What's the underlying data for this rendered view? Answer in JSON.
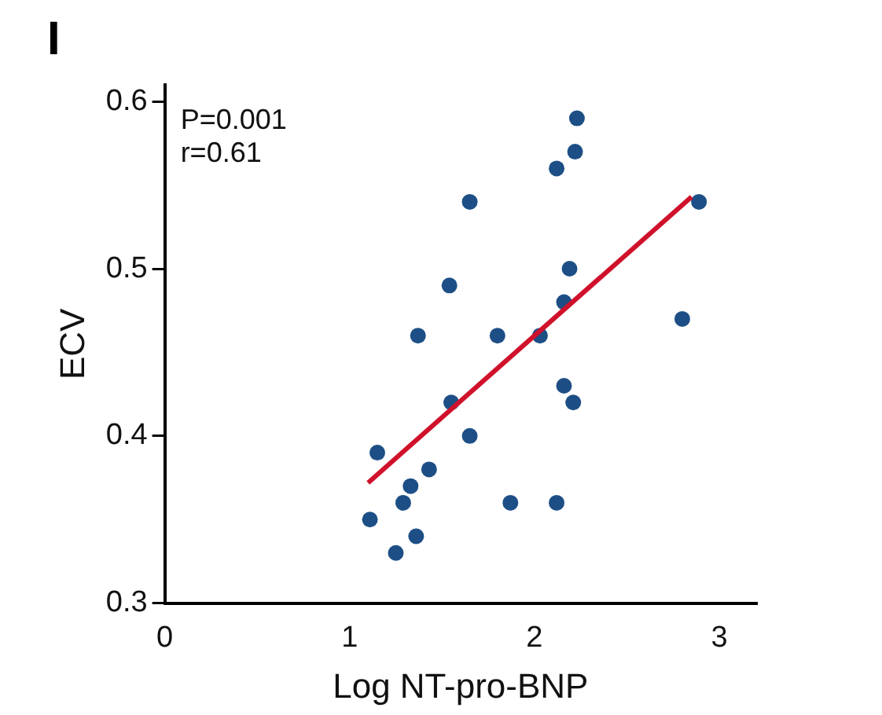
{
  "chart_data": {
    "type": "scatter",
    "title": "I",
    "xlabel": "Log NT-pro-BNP",
    "ylabel": "ECV",
    "xlim": [
      0,
      3.2
    ],
    "xticks": [
      0,
      1,
      2,
      3
    ],
    "ylim": [
      0.3,
      0.61
    ],
    "yticks": [
      0.3,
      0.4,
      0.5,
      0.6
    ],
    "grid": false,
    "legend": false,
    "marker": "circle",
    "annotations": [
      "P=0.001",
      "r=0.61"
    ],
    "series": [
      {
        "color": "#1d4f86",
        "x": [
          2.23,
          2.22,
          2.12,
          1.65,
          2.89,
          2.19,
          1.54,
          2.16,
          2.8,
          1.37,
          1.8,
          2.03,
          2.16,
          2.21,
          1.55,
          1.65,
          1.15,
          1.43,
          1.33,
          1.29,
          1.87,
          2.12,
          1.11,
          1.36,
          1.25
        ],
        "values": [
          0.59,
          0.57,
          0.56,
          0.54,
          0.54,
          0.5,
          0.49,
          0.48,
          0.47,
          0.46,
          0.46,
          0.46,
          0.43,
          0.42,
          0.42,
          0.4,
          0.39,
          0.38,
          0.37,
          0.36,
          0.36,
          0.36,
          0.35,
          0.34,
          0.33
        ]
      },
      {
        "type": "line",
        "color": "#d0112b",
        "marker": "none",
        "x": [
          1.1,
          2.85
        ],
        "values": [
          0.372,
          0.543
        ]
      }
    ]
  }
}
